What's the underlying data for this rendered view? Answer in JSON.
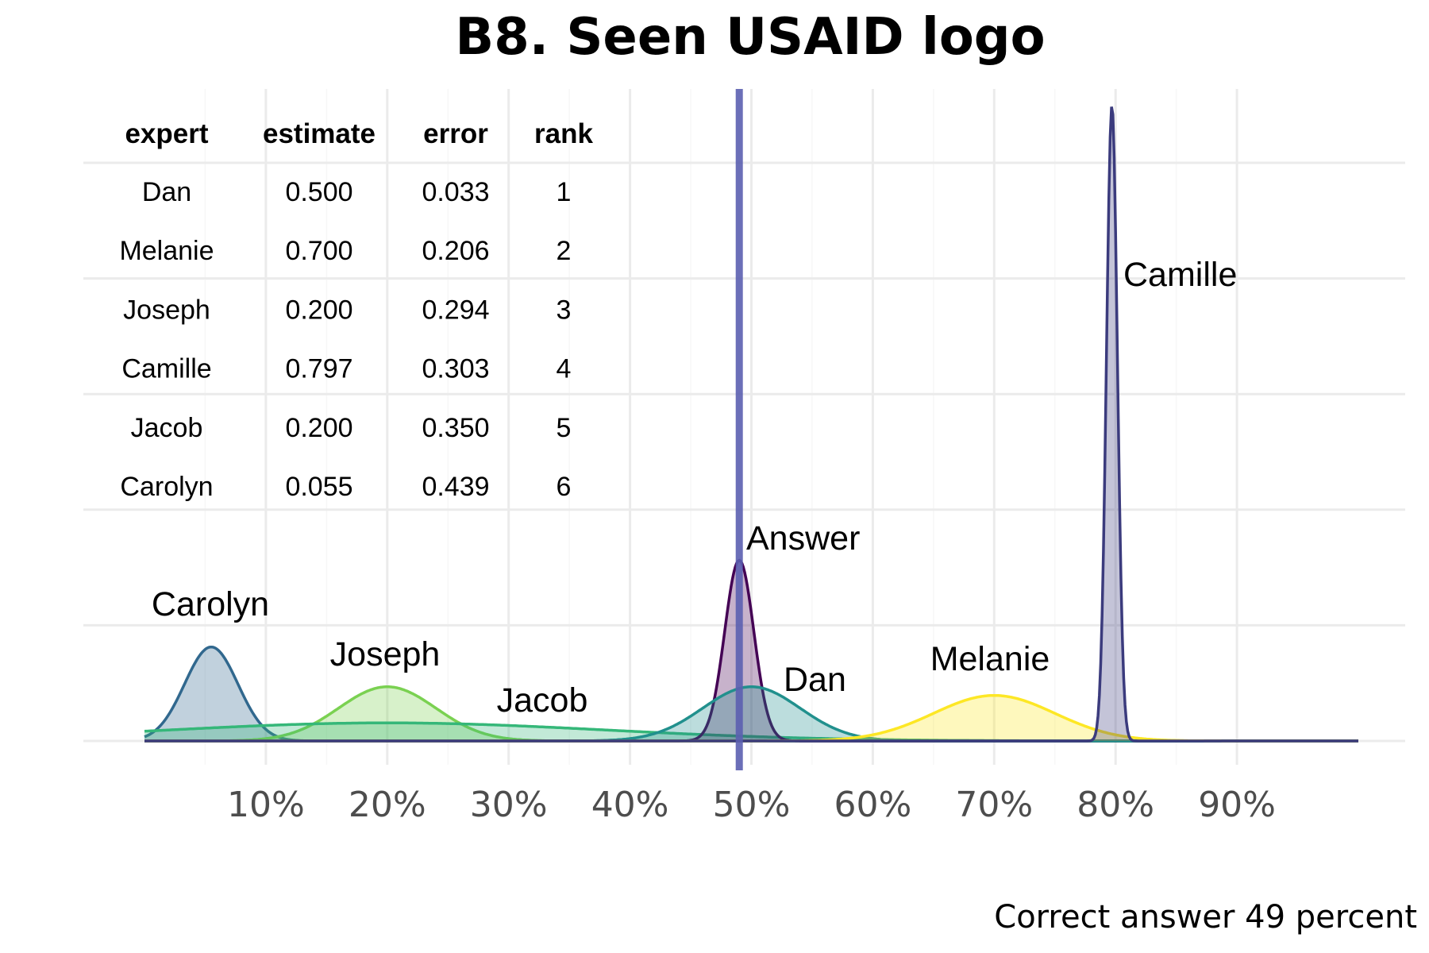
{
  "chart_data": {
    "type": "area",
    "title": "B8. Seen USAID logo",
    "caption": "Correct answer 49 percent",
    "xlim": [
      0,
      1
    ],
    "x_ticks": [
      0.1,
      0.2,
      0.3,
      0.4,
      0.5,
      0.6,
      0.7,
      0.8,
      0.9
    ],
    "x_tick_labels": [
      "10%",
      "20%",
      "30%",
      "40%",
      "50%",
      "60%",
      "70%",
      "80%",
      "90%"
    ],
    "answer": {
      "label": "Answer",
      "x": 0.49,
      "color": "#5b5fb0"
    },
    "grid": true,
    "series": [
      {
        "name": "Carolyn",
        "estimate": 0.055,
        "spread": 0.022,
        "peak": 0.13,
        "color": "#31688e"
      },
      {
        "name": "Joseph",
        "estimate": 0.2,
        "spread": 0.04,
        "peak": 0.075,
        "color": "#7ad151"
      },
      {
        "name": "Jacob",
        "estimate": 0.2,
        "spread": 0.18,
        "peak": 0.025,
        "color": "#35b779"
      },
      {
        "name": "Answer",
        "estimate": 0.49,
        "spread": 0.012,
        "peak": 0.25,
        "color": "#440154"
      },
      {
        "name": "Dan",
        "estimate": 0.5,
        "spread": 0.04,
        "peak": 0.075,
        "color": "#21908d"
      },
      {
        "name": "Melanie",
        "estimate": 0.7,
        "spread": 0.05,
        "peak": 0.063,
        "color": "#fde725"
      },
      {
        "name": "Camille",
        "estimate": 0.797,
        "spread": 0.0045,
        "peak": 0.88,
        "color": "#3b3b7d"
      }
    ],
    "table": {
      "columns": [
        "expert",
        "estimate",
        "error",
        "rank"
      ],
      "rows": [
        [
          "Dan",
          "0.500",
          "0.033",
          "1"
        ],
        [
          "Melanie",
          "0.700",
          "0.206",
          "2"
        ],
        [
          "Joseph",
          "0.200",
          "0.294",
          "3"
        ],
        [
          "Camille",
          "0.797",
          "0.303",
          "4"
        ],
        [
          "Jacob",
          "0.200",
          "0.350",
          "5"
        ],
        [
          "Carolyn",
          "0.055",
          "0.439",
          "6"
        ]
      ]
    }
  }
}
